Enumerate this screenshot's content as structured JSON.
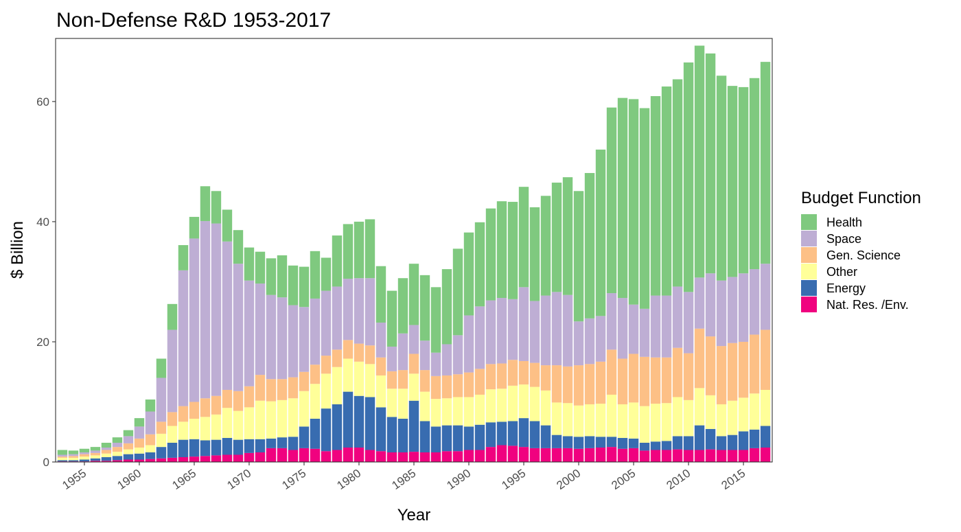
{
  "chart_data": {
    "type": "bar",
    "stacked": true,
    "title": "Non-Defense R&D 1953-2017",
    "xlabel": "Year",
    "ylabel": "$ Billion",
    "ylim": [
      0,
      70.5
    ],
    "yticks": [
      0,
      20,
      40,
      60
    ],
    "xticks": [
      1955,
      1960,
      1965,
      1970,
      1975,
      1980,
      1985,
      1990,
      1995,
      2000,
      2005,
      2010,
      2015
    ],
    "grid": false,
    "legend_title": "Budget Function",
    "legend_position": "right",
    "x": [
      1953,
      1954,
      1955,
      1956,
      1957,
      1958,
      1959,
      1960,
      1961,
      1962,
      1963,
      1964,
      1965,
      1966,
      1967,
      1968,
      1969,
      1970,
      1971,
      1972,
      1973,
      1974,
      1975,
      1976,
      1977,
      1978,
      1979,
      1980,
      1981,
      1982,
      1983,
      1984,
      1985,
      1986,
      1987,
      1988,
      1989,
      1990,
      1991,
      1992,
      1993,
      1994,
      1995,
      1996,
      1997,
      1998,
      1999,
      2000,
      2001,
      2002,
      2003,
      2004,
      2005,
      2006,
      2007,
      2008,
      2009,
      2010,
      2011,
      2012,
      2013,
      2014,
      2015,
      2016,
      2017
    ],
    "series": [
      {
        "name": "Nat. Res. /Env.",
        "color": "#F0027F",
        "values": [
          0.1,
          0.1,
          0.1,
          0.2,
          0.2,
          0.3,
          0.4,
          0.4,
          0.5,
          0.6,
          0.7,
          0.8,
          0.9,
          1.0,
          1.1,
          1.2,
          1.2,
          1.5,
          1.6,
          2.3,
          2.3,
          2.0,
          2.3,
          2.2,
          1.8,
          2.0,
          2.4,
          2.4,
          2.0,
          1.8,
          1.6,
          1.6,
          1.7,
          1.6,
          1.6,
          1.8,
          1.8,
          2.0,
          2.0,
          2.5,
          2.8,
          2.7,
          2.5,
          2.3,
          2.3,
          2.3,
          2.3,
          2.2,
          2.3,
          2.4,
          2.5,
          2.2,
          2.3,
          1.9,
          2.0,
          2.0,
          2.1,
          2.0,
          2.0,
          2.1,
          2.0,
          2.0,
          2.0,
          2.3,
          2.4
        ]
      },
      {
        "name": "Energy",
        "color": "#386CB0",
        "values": [
          0.2,
          0.2,
          0.3,
          0.4,
          0.6,
          0.7,
          0.9,
          1.0,
          1.1,
          1.9,
          2.5,
          2.9,
          2.9,
          2.6,
          2.6,
          2.8,
          2.5,
          2.3,
          2.2,
          1.6,
          1.8,
          2.2,
          3.6,
          5.0,
          7.1,
          7.6,
          9.3,
          8.6,
          8.8,
          7.3,
          5.9,
          5.6,
          8.5,
          5.2,
          4.3,
          4.3,
          4.3,
          3.9,
          4.2,
          4.1,
          3.9,
          4.1,
          4.8,
          4.5,
          3.8,
          2.2,
          2.0,
          2.0,
          2.0,
          1.8,
          1.7,
          1.8,
          1.6,
          1.3,
          1.4,
          1.5,
          2.2,
          2.3,
          4.1,
          3.4,
          2.3,
          2.5,
          3.1,
          3.1,
          3.6
        ]
      },
      {
        "name": "Other",
        "color": "#FFFF99",
        "values": [
          0.4,
          0.4,
          0.5,
          0.5,
          0.6,
          0.7,
          0.8,
          1.0,
          1.2,
          2.2,
          2.8,
          3.0,
          3.4,
          3.9,
          4.2,
          5.0,
          4.8,
          5.3,
          6.4,
          6.2,
          6.2,
          6.4,
          5.9,
          5.8,
          5.8,
          6.2,
          5.5,
          5.7,
          5.5,
          5.3,
          4.7,
          5.0,
          4.5,
          4.9,
          4.6,
          4.5,
          4.7,
          4.9,
          5.0,
          5.5,
          5.5,
          5.9,
          5.6,
          5.7,
          5.8,
          5.4,
          5.5,
          5.2,
          5.3,
          5.5,
          7.0,
          5.6,
          6.0,
          6.1,
          6.3,
          6.3,
          6.5,
          6.0,
          6.2,
          5.6,
          5.3,
          5.7,
          5.6,
          6.0,
          6.0
        ]
      },
      {
        "name": "Gen. Science",
        "color": "#FDC086",
        "values": [
          0.2,
          0.3,
          0.4,
          0.4,
          0.6,
          0.8,
          1.0,
          1.5,
          1.8,
          2.0,
          2.3,
          2.6,
          2.8,
          3.1,
          3.1,
          3.0,
          3.3,
          3.5,
          4.3,
          3.7,
          3.5,
          3.5,
          3.2,
          3.2,
          3.0,
          2.9,
          3.1,
          3.0,
          3.1,
          3.0,
          2.9,
          3.1,
          3.3,
          3.6,
          3.8,
          3.8,
          3.8,
          4.1,
          4.3,
          4.2,
          4.2,
          4.3,
          3.9,
          4.0,
          4.2,
          6.2,
          6.1,
          6.7,
          6.7,
          7.0,
          7.5,
          7.6,
          8.1,
          8.2,
          7.7,
          7.6,
          8.2,
          7.8,
          9.9,
          9.8,
          9.7,
          9.6,
          9.3,
          9.8,
          10.0
        ]
      },
      {
        "name": "Space",
        "color": "#BEAED4",
        "values": [
          0.3,
          0.3,
          0.3,
          0.4,
          0.4,
          0.7,
          1.2,
          2.0,
          3.8,
          7.3,
          13.7,
          22.6,
          27.2,
          29.5,
          28.7,
          24.7,
          21.2,
          17.6,
          15.2,
          14.0,
          13.6,
          12.0,
          10.8,
          11.0,
          10.8,
          10.5,
          10.2,
          10.9,
          11.2,
          5.8,
          4.1,
          6.1,
          4.8,
          4.9,
          3.9,
          5.2,
          6.5,
          9.5,
          10.4,
          10.6,
          10.9,
          10.1,
          12.3,
          10.3,
          11.6,
          12.2,
          11.9,
          7.3,
          7.6,
          7.6,
          9.4,
          10.1,
          8.2,
          8.0,
          10.3,
          10.3,
          10.2,
          10.2,
          8.5,
          10.5,
          10.9,
          11.0,
          11.4,
          10.9,
          11.0
        ]
      },
      {
        "name": "Health",
        "color": "#7FC97F",
        "values": [
          0.8,
          0.6,
          0.6,
          0.6,
          0.8,
          0.9,
          1.0,
          1.4,
          2.0,
          3.2,
          4.3,
          4.2,
          3.6,
          5.8,
          5.4,
          5.3,
          5.6,
          5.5,
          5.3,
          6.1,
          7.0,
          6.6,
          6.7,
          7.9,
          5.5,
          8.5,
          9.1,
          9.4,
          9.8,
          9.4,
          9.3,
          9.2,
          10.2,
          10.9,
          10.9,
          12.5,
          14.4,
          13.8,
          14.0,
          15.3,
          16.1,
          16.2,
          16.7,
          15.6,
          16.6,
          18.2,
          19.6,
          21.7,
          24.2,
          27.7,
          30.9,
          33.3,
          34.2,
          33.4,
          33.2,
          34.8,
          34.5,
          38.2,
          38.6,
          36.6,
          34.1,
          31.8,
          31.0,
          31.8,
          33.6
        ]
      }
    ]
  }
}
